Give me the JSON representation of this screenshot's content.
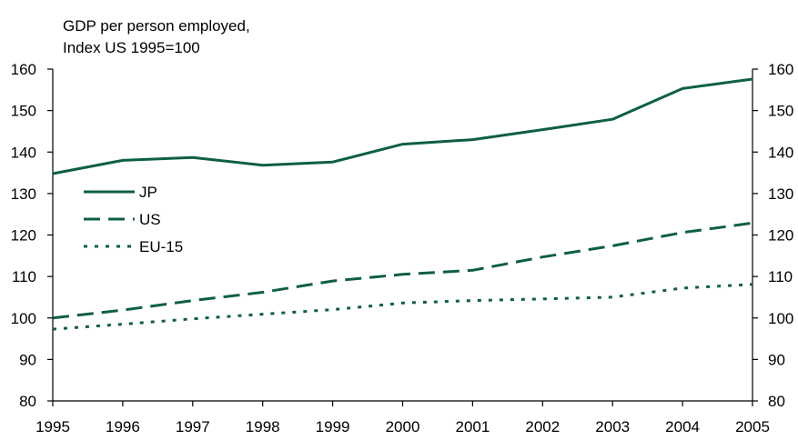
{
  "chart_data": {
    "type": "line",
    "title_lines": [
      "GDP per person employed,",
      "Index US 1995=100"
    ],
    "xlabel": "",
    "ylabel": "",
    "x": [
      "1995",
      "1996",
      "1997",
      "1998",
      "1999",
      "2000",
      "2001",
      "2002",
      "2003",
      "2004",
      "2005"
    ],
    "ylim": [
      80,
      160
    ],
    "yticks": [
      "80",
      "90",
      "100",
      "110",
      "120",
      "130",
      "140",
      "150",
      "160"
    ],
    "grid": false,
    "legend_position": "left",
    "colors": {
      "series": "#0d5e48",
      "axis": "#000000"
    },
    "series": [
      {
        "name": "JP",
        "style": "solid",
        "values": [
          134.8,
          138.0,
          138.7,
          136.8,
          137.6,
          141.9,
          143.0,
          145.4,
          147.9,
          155.3,
          157.6
        ]
      },
      {
        "name": "US",
        "style": "dashed",
        "values": [
          100.0,
          101.9,
          104.2,
          106.2,
          108.9,
          110.5,
          111.5,
          114.7,
          117.4,
          120.6,
          122.9
        ]
      },
      {
        "name": "EU-15",
        "style": "dotted",
        "values": [
          97.3,
          98.5,
          99.8,
          100.9,
          102.0,
          103.6,
          104.2,
          104.6,
          105.0,
          107.2,
          108.1
        ]
      }
    ]
  }
}
